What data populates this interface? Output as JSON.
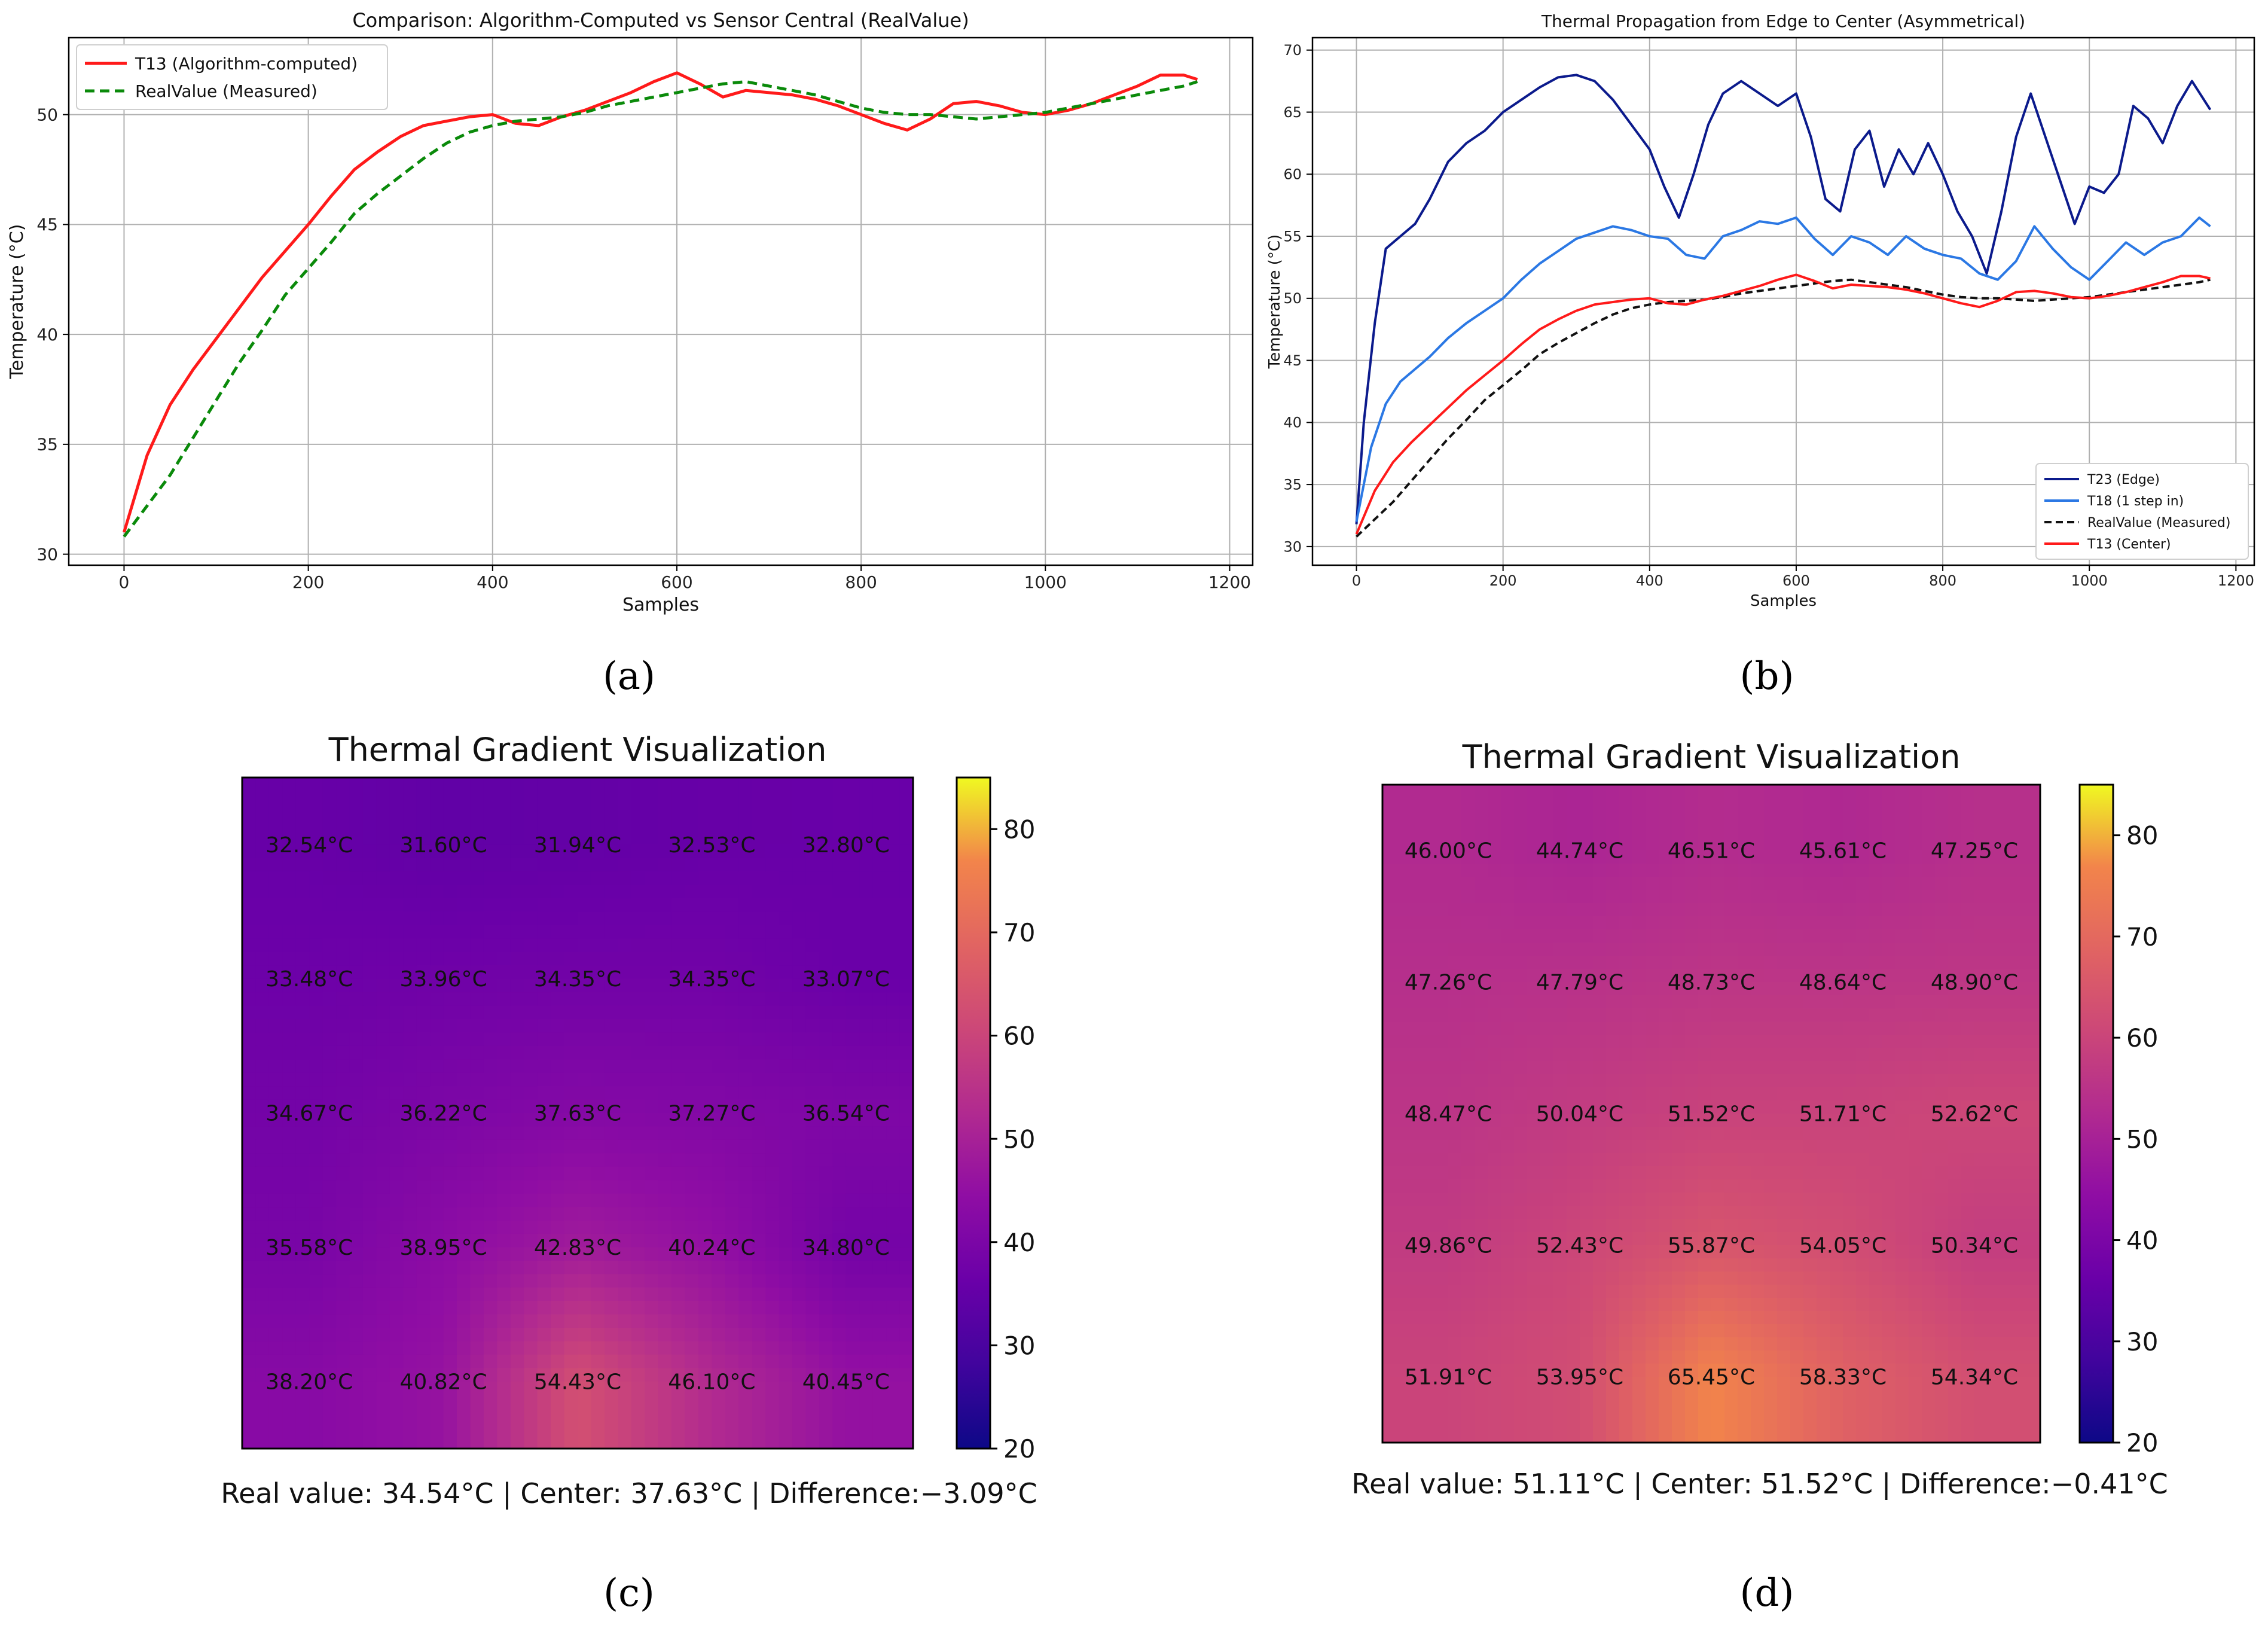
{
  "figure": {
    "panel_labels": [
      "(a)",
      "(b)",
      "(c)",
      "(d)"
    ]
  },
  "colors": {
    "red": "#ff1a1a",
    "green": "#0a8a0a",
    "navy": "#0b1a8c",
    "blue": "#2b78e4",
    "black": "#111111",
    "grid": "#b0b0b0"
  },
  "chart_data": [
    {
      "panel": "a",
      "type": "line",
      "title": "Comparison: Algorithm-Computed vs Sensor Central (RealValue)",
      "xlabel": "Samples",
      "ylabel": "Temperature (°C)",
      "xlim": [
        -60,
        1225
      ],
      "ylim": [
        29.5,
        53.5
      ],
      "xticks": [
        0,
        200,
        400,
        600,
        800,
        1000,
        1200
      ],
      "yticks": [
        30,
        35,
        40,
        45,
        50
      ],
      "legend_position": "top-left",
      "grid": true,
      "series": [
        {
          "name": "T13 (Algorithm-computed)",
          "color": "#ff1a1a",
          "style": "solid",
          "x": [
            0,
            25,
            50,
            75,
            100,
            125,
            150,
            175,
            200,
            225,
            250,
            275,
            300,
            325,
            350,
            375,
            400,
            425,
            450,
            475,
            500,
            525,
            550,
            575,
            600,
            625,
            650,
            675,
            700,
            725,
            750,
            775,
            800,
            825,
            850,
            875,
            900,
            925,
            950,
            975,
            1000,
            1025,
            1050,
            1075,
            1100,
            1125,
            1150,
            1165
          ],
          "y": [
            31.0,
            34.5,
            36.8,
            38.4,
            39.8,
            41.2,
            42.6,
            43.8,
            45.0,
            46.3,
            47.5,
            48.3,
            49.0,
            49.5,
            49.7,
            49.9,
            50.0,
            49.6,
            49.5,
            49.9,
            50.2,
            50.6,
            51.0,
            51.5,
            51.9,
            51.4,
            50.8,
            51.1,
            51.0,
            50.9,
            50.7,
            50.4,
            50.0,
            49.6,
            49.3,
            49.8,
            50.5,
            50.6,
            50.4,
            50.1,
            50.0,
            50.2,
            50.5,
            50.9,
            51.3,
            51.8,
            51.8,
            51.6
          ]
        },
        {
          "name": "RealValue (Measured)",
          "color": "#0a8a0a",
          "style": "dashed",
          "x": [
            0,
            25,
            50,
            75,
            100,
            125,
            150,
            175,
            200,
            225,
            250,
            275,
            300,
            325,
            350,
            375,
            400,
            425,
            450,
            475,
            500,
            525,
            550,
            575,
            600,
            625,
            650,
            675,
            700,
            725,
            750,
            775,
            800,
            825,
            850,
            875,
            900,
            925,
            950,
            975,
            1000,
            1025,
            1050,
            1075,
            1100,
            1125,
            1150,
            1165
          ],
          "y": [
            30.8,
            32.2,
            33.6,
            35.3,
            37.0,
            38.7,
            40.2,
            41.8,
            43.0,
            44.2,
            45.5,
            46.4,
            47.2,
            48.0,
            48.7,
            49.2,
            49.5,
            49.7,
            49.8,
            49.9,
            50.1,
            50.4,
            50.6,
            50.8,
            51.0,
            51.2,
            51.4,
            51.5,
            51.3,
            51.1,
            50.9,
            50.6,
            50.3,
            50.1,
            50.0,
            50.0,
            49.9,
            49.8,
            49.9,
            50.0,
            50.1,
            50.3,
            50.5,
            50.7,
            50.9,
            51.1,
            51.3,
            51.5
          ]
        }
      ]
    },
    {
      "panel": "b",
      "type": "line",
      "title": "Thermal Propagation from Edge to Center (Asymmetrical)",
      "xlabel": "Samples",
      "ylabel": "Temperature (°C)",
      "xlim": [
        -60,
        1225
      ],
      "ylim": [
        28.5,
        71
      ],
      "xticks": [
        0,
        200,
        400,
        600,
        800,
        1000,
        1200
      ],
      "yticks": [
        30,
        35,
        40,
        45,
        50,
        55,
        60,
        65,
        70
      ],
      "legend_position": "bottom-right",
      "grid": true,
      "series": [
        {
          "name": "T23 (Edge)",
          "color": "#0b1a8c",
          "style": "solid",
          "x": [
            0,
            10,
            25,
            40,
            60,
            80,
            100,
            125,
            150,
            175,
            200,
            225,
            250,
            275,
            300,
            325,
            350,
            375,
            400,
            420,
            440,
            460,
            480,
            500,
            525,
            550,
            575,
            600,
            620,
            640,
            660,
            680,
            700,
            720,
            740,
            760,
            780,
            800,
            820,
            840,
            860,
            880,
            900,
            920,
            940,
            960,
            980,
            1000,
            1020,
            1040,
            1060,
            1080,
            1100,
            1120,
            1140,
            1165
          ],
          "y": [
            31.8,
            40,
            48,
            54,
            55,
            56,
            58,
            61,
            62.5,
            63.5,
            65,
            66,
            67,
            67.8,
            68,
            67.5,
            66,
            64,
            62,
            59,
            56.5,
            60,
            64,
            66.5,
            67.5,
            66.5,
            65.5,
            66.5,
            63,
            58,
            57,
            62,
            63.5,
            59,
            62,
            60,
            62.5,
            60,
            57,
            55,
            52,
            57,
            63,
            66.5,
            63,
            59.5,
            56,
            59,
            58.5,
            60,
            65.5,
            64.5,
            62.5,
            65.5,
            67.5,
            65.2
          ]
        },
        {
          "name": "T18 (1 step in)",
          "color": "#2b78e4",
          "style": "solid",
          "x": [
            0,
            20,
            40,
            60,
            80,
            100,
            125,
            150,
            175,
            200,
            225,
            250,
            275,
            300,
            325,
            350,
            375,
            400,
            425,
            450,
            475,
            500,
            525,
            550,
            575,
            600,
            625,
            650,
            675,
            700,
            725,
            750,
            775,
            800,
            825,
            850,
            875,
            900,
            925,
            950,
            975,
            1000,
            1025,
            1050,
            1075,
            1100,
            1125,
            1150,
            1165
          ],
          "y": [
            32.0,
            38.0,
            41.5,
            43.3,
            44.3,
            45.3,
            46.8,
            48.0,
            49.0,
            50.0,
            51.5,
            52.8,
            53.8,
            54.8,
            55.3,
            55.8,
            55.5,
            55.0,
            54.8,
            53.5,
            53.2,
            55.0,
            55.5,
            56.2,
            56.0,
            56.5,
            54.8,
            53.5,
            55.0,
            54.5,
            53.5,
            55.0,
            54.0,
            53.5,
            53.2,
            52.0,
            51.5,
            53.0,
            55.8,
            54.0,
            52.5,
            51.5,
            53.0,
            54.5,
            53.5,
            54.5,
            55.0,
            56.5,
            55.8
          ]
        },
        {
          "name": "RealValue (Measured)",
          "color": "#111111",
          "style": "dashed",
          "x": [
            0,
            25,
            50,
            75,
            100,
            125,
            150,
            175,
            200,
            225,
            250,
            275,
            300,
            325,
            350,
            375,
            400,
            425,
            450,
            475,
            500,
            525,
            550,
            575,
            600,
            625,
            650,
            675,
            700,
            725,
            750,
            775,
            800,
            825,
            850,
            875,
            900,
            925,
            950,
            975,
            1000,
            1025,
            1050,
            1075,
            1100,
            1125,
            1150,
            1165
          ],
          "y": [
            30.8,
            32.2,
            33.6,
            35.3,
            37.0,
            38.7,
            40.2,
            41.8,
            43.0,
            44.2,
            45.5,
            46.4,
            47.2,
            48.0,
            48.7,
            49.2,
            49.5,
            49.7,
            49.8,
            49.9,
            50.1,
            50.4,
            50.6,
            50.8,
            51.0,
            51.2,
            51.4,
            51.5,
            51.3,
            51.1,
            50.9,
            50.6,
            50.3,
            50.1,
            50.0,
            50.0,
            49.9,
            49.8,
            49.9,
            50.0,
            50.1,
            50.3,
            50.5,
            50.7,
            50.9,
            51.1,
            51.3,
            51.5
          ]
        },
        {
          "name": "T13 (Center)",
          "color": "#ff1a1a",
          "style": "solid",
          "x": [
            0,
            25,
            50,
            75,
            100,
            125,
            150,
            175,
            200,
            225,
            250,
            275,
            300,
            325,
            350,
            375,
            400,
            425,
            450,
            475,
            500,
            525,
            550,
            575,
            600,
            625,
            650,
            675,
            700,
            725,
            750,
            775,
            800,
            825,
            850,
            875,
            900,
            925,
            950,
            975,
            1000,
            1025,
            1050,
            1075,
            1100,
            1125,
            1150,
            1165
          ],
          "y": [
            31.0,
            34.5,
            36.8,
            38.4,
            39.8,
            41.2,
            42.6,
            43.8,
            45.0,
            46.3,
            47.5,
            48.3,
            49.0,
            49.5,
            49.7,
            49.9,
            50.0,
            49.6,
            49.5,
            49.9,
            50.2,
            50.6,
            51.0,
            51.5,
            51.9,
            51.4,
            50.8,
            51.1,
            51.0,
            50.9,
            50.7,
            50.4,
            50.0,
            49.6,
            49.3,
            49.8,
            50.5,
            50.6,
            50.4,
            50.1,
            50.0,
            50.2,
            50.5,
            50.9,
            51.3,
            51.8,
            51.8,
            51.6
          ]
        }
      ]
    },
    {
      "panel": "c",
      "type": "heatmap",
      "title": "Thermal Gradient Visualization",
      "unit": "°C",
      "colormap": "plasma",
      "vmin": 20,
      "vmax": 85,
      "colorbar_ticks": [
        20,
        30,
        40,
        50,
        60,
        70,
        80
      ],
      "values": [
        [
          32.54,
          31.6,
          31.94,
          32.53,
          32.8
        ],
        [
          33.48,
          33.96,
          34.35,
          34.35,
          33.07
        ],
        [
          34.67,
          36.22,
          37.63,
          37.27,
          36.54
        ],
        [
          35.58,
          38.95,
          42.83,
          40.24,
          34.8
        ],
        [
          38.2,
          40.82,
          54.43,
          46.1,
          40.45
        ]
      ],
      "caption": "Real value: 34.54°C | Center: 37.63°C | Difference:−3.09°C"
    },
    {
      "panel": "d",
      "type": "heatmap",
      "title": "Thermal Gradient Visualization",
      "unit": "°C",
      "colormap": "plasma",
      "vmin": 20,
      "vmax": 85,
      "colorbar_ticks": [
        20,
        30,
        40,
        50,
        60,
        70,
        80
      ],
      "values": [
        [
          46.0,
          44.74,
          46.51,
          45.61,
          47.25
        ],
        [
          47.26,
          47.79,
          48.73,
          48.64,
          48.9
        ],
        [
          48.47,
          50.04,
          51.52,
          51.71,
          52.62
        ],
        [
          49.86,
          52.43,
          55.87,
          54.05,
          50.34
        ],
        [
          51.91,
          53.95,
          65.45,
          58.33,
          54.34
        ]
      ],
      "caption": "Real value: 51.11°C | Center: 51.52°C | Difference:−0.41°C"
    }
  ]
}
